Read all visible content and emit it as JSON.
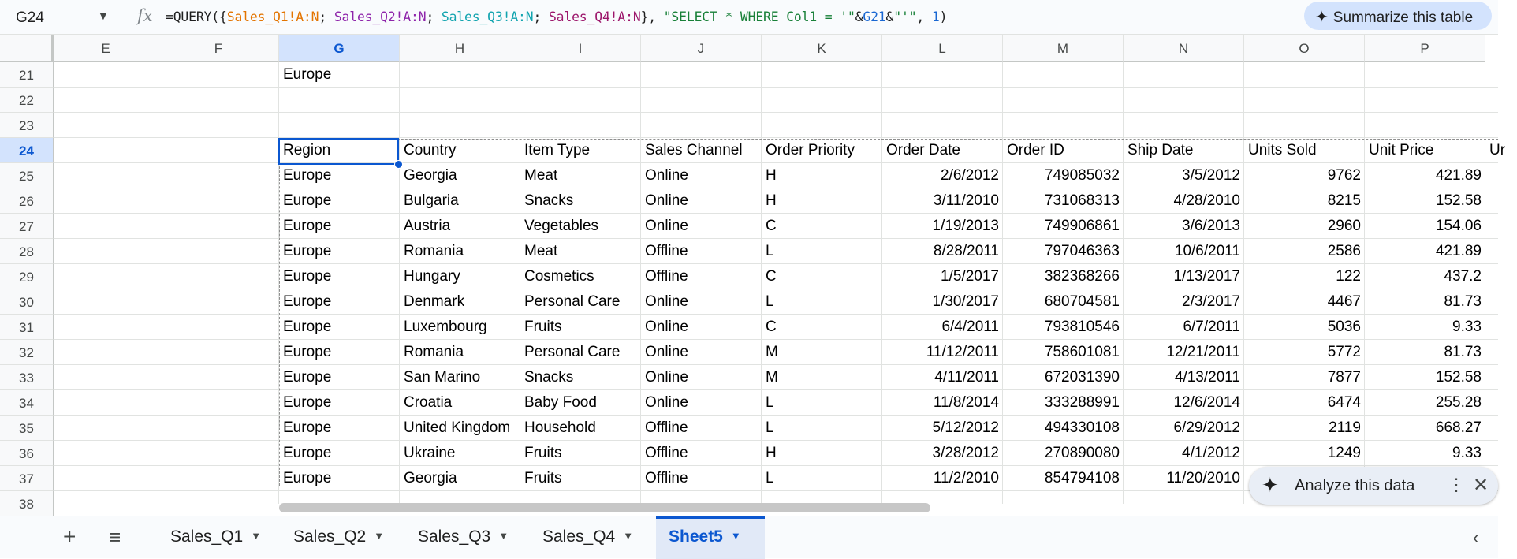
{
  "formula_bar": {
    "cell_ref": "G24",
    "fx": "fx",
    "formula": {
      "prefix": "=QUERY({",
      "r1": "Sales_Q1!A:N",
      "sep1": "; ",
      "r2": "Sales_Q2!A:N",
      "sep2": "; ",
      "r3": "Sales_Q3!A:N",
      "sep3": "; ",
      "r4": "Sales_Q4!A:N",
      "mid": "}, ",
      "q1": "\"SELECT * WHERE Col1 = '\"",
      "amp1": "&",
      "ref": "G21",
      "amp2": "&",
      "q2": "\"'\"",
      "comma": ", ",
      "arg": "1",
      "suffix": ")"
    },
    "summarize_label": "Summarize this table"
  },
  "columns": [
    "E",
    "F",
    "G",
    "H",
    "I",
    "J",
    "K",
    "L",
    "M",
    "N",
    "O",
    "P"
  ],
  "selected_column": "G",
  "rows": [
    "21",
    "22",
    "23",
    "24",
    "25",
    "26",
    "27",
    "28",
    "29",
    "30",
    "31",
    "32",
    "33",
    "34",
    "35",
    "36",
    "37",
    "38"
  ],
  "selected_row": "24",
  "cells": {
    "g21": "Europe"
  },
  "table": {
    "headers": [
      "Region",
      "Country",
      "Item Type",
      "Sales Channel",
      "Order Priority",
      "Order Date",
      "Order ID",
      "Ship Date",
      "Units Sold",
      "Unit Price",
      "Ur"
    ],
    "rows": [
      [
        "Europe",
        "Georgia",
        "Meat",
        "Online",
        "H",
        "2/6/2012",
        "749085032",
        "3/5/2012",
        "9762",
        "421.89"
      ],
      [
        "Europe",
        "Bulgaria",
        "Snacks",
        "Online",
        "H",
        "3/11/2010",
        "731068313",
        "4/28/2010",
        "8215",
        "152.58"
      ],
      [
        "Europe",
        "Austria",
        "Vegetables",
        "Online",
        "C",
        "1/19/2013",
        "749906861",
        "3/6/2013",
        "2960",
        "154.06"
      ],
      [
        "Europe",
        "Romania",
        "Meat",
        "Offline",
        "L",
        "8/28/2011",
        "797046363",
        "10/6/2011",
        "2586",
        "421.89"
      ],
      [
        "Europe",
        "Hungary",
        "Cosmetics",
        "Offline",
        "C",
        "1/5/2017",
        "382368266",
        "1/13/2017",
        "122",
        "437.2"
      ],
      [
        "Europe",
        "Denmark",
        "Personal Care",
        "Online",
        "L",
        "1/30/2017",
        "680704581",
        "2/3/2017",
        "4467",
        "81.73"
      ],
      [
        "Europe",
        "Luxembourg",
        "Fruits",
        "Online",
        "C",
        "6/4/2011",
        "793810546",
        "6/7/2011",
        "5036",
        "9.33"
      ],
      [
        "Europe",
        "Romania",
        "Personal Care",
        "Online",
        "M",
        "11/12/2011",
        "758601081",
        "12/21/2011",
        "5772",
        "81.73"
      ],
      [
        "Europe",
        "San Marino",
        "Snacks",
        "Online",
        "M",
        "4/11/2011",
        "672031390",
        "4/13/2011",
        "7877",
        "152.58"
      ],
      [
        "Europe",
        "Croatia",
        "Baby Food",
        "Online",
        "L",
        "11/8/2014",
        "333288991",
        "12/6/2014",
        "6474",
        "255.28"
      ],
      [
        "Europe",
        "United Kingdom",
        "Household",
        "Offline",
        "L",
        "5/12/2012",
        "494330108",
        "6/29/2012",
        "2119",
        "668.27"
      ],
      [
        "Europe",
        "Ukraine",
        "Fruits",
        "Offline",
        "H",
        "3/28/2012",
        "270890080",
        "4/1/2012",
        "1249",
        "9.33"
      ],
      [
        "Europe",
        "Georgia",
        "Fruits",
        "Offline",
        "L",
        "11/2/2010",
        "854794108",
        "11/20/2010",
        "",
        ""
      ]
    ]
  },
  "analyze_chip": {
    "label": "Analyze this data",
    "more": "⋮",
    "close": "✕"
  },
  "tab_bar": {
    "add": "+",
    "all_sheets": "≡",
    "tabs": [
      "Sales_Q1",
      "Sales_Q2",
      "Sales_Q3",
      "Sales_Q4",
      "Sheet5"
    ],
    "active_tab": "Sheet5",
    "nav_left": "‹"
  },
  "colors": {
    "accent": "#0b57d0",
    "range_q1": "#e37400",
    "range_q2": "#8e24aa",
    "range_q3": "#12a4af",
    "range_q4": "#9c166b",
    "string": "#188038",
    "number": "#1967d2"
  }
}
